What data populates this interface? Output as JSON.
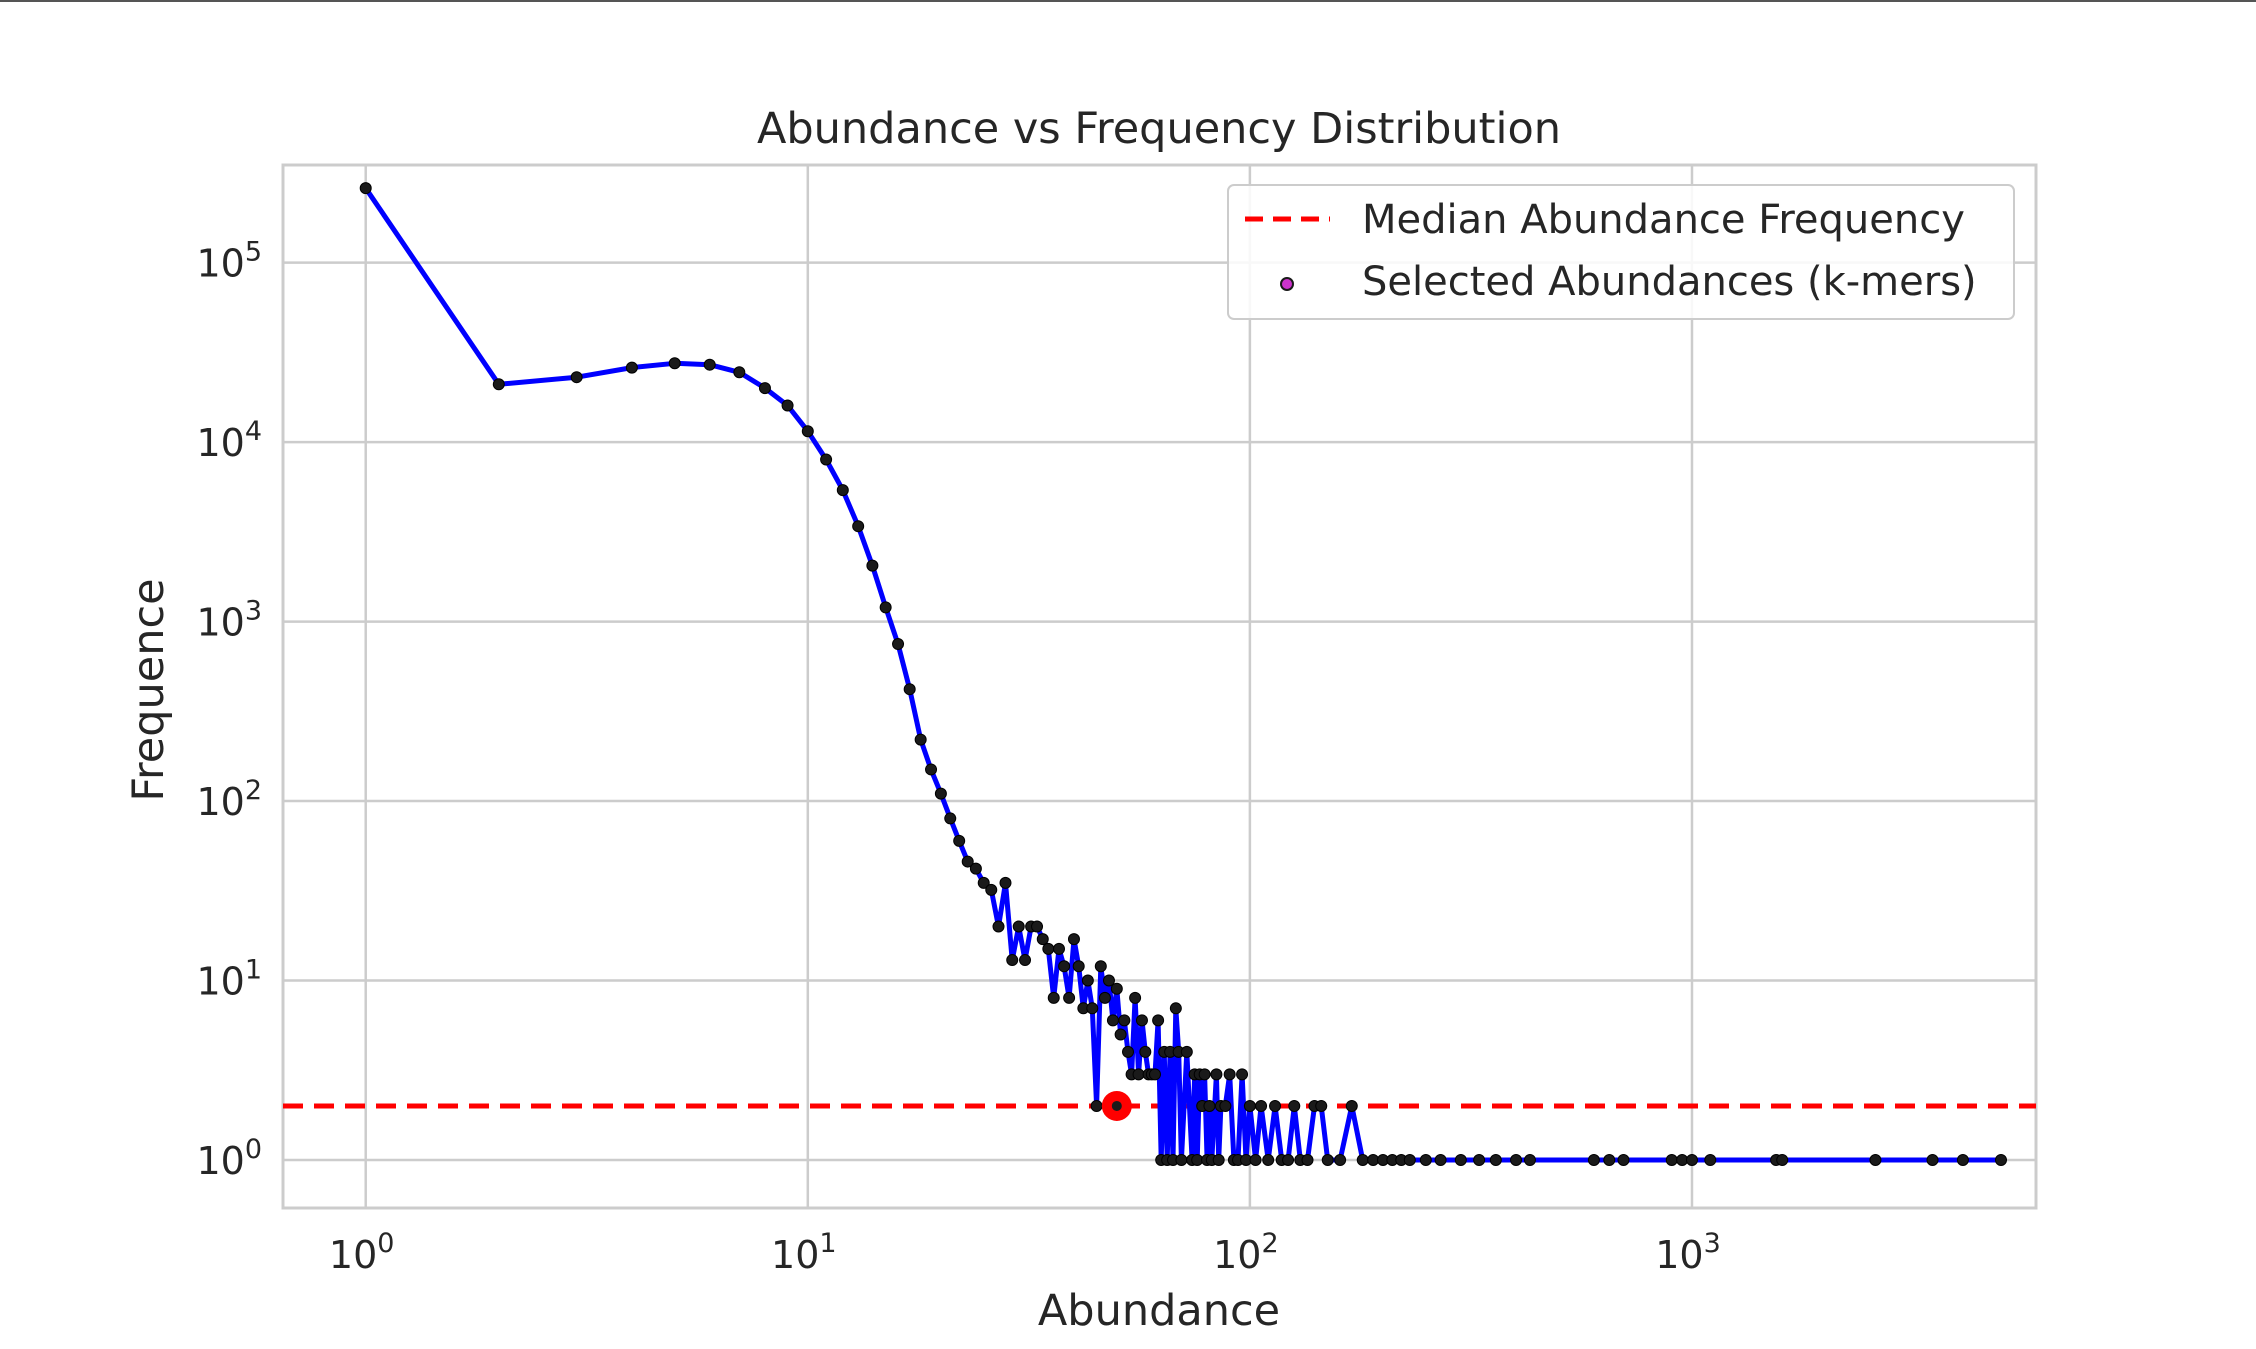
{
  "chart_data": {
    "type": "line",
    "title": "Abundance vs Frequency Distribution",
    "xlabel": "Abundance",
    "ylabel": "Frequence",
    "xscale": "log",
    "yscale": "log",
    "xlim": [
      0.65,
      6000
    ],
    "ylim": [
      0.54,
      350000
    ],
    "grid": true,
    "legend_position": "upper right",
    "x_ticks": [
      {
        "base": "10",
        "exp": "0",
        "value": 1
      },
      {
        "base": "10",
        "exp": "1",
        "value": 10
      },
      {
        "base": "10",
        "exp": "2",
        "value": 100
      },
      {
        "base": "10",
        "exp": "3",
        "value": 1000
      }
    ],
    "y_ticks": [
      {
        "base": "10",
        "exp": "0",
        "value": 1
      },
      {
        "base": "10",
        "exp": "1",
        "value": 10
      },
      {
        "base": "10",
        "exp": "2",
        "value": 100
      },
      {
        "base": "10",
        "exp": "3",
        "value": 1000
      },
      {
        "base": "10",
        "exp": "4",
        "value": 10000
      },
      {
        "base": "10",
        "exp": "5",
        "value": 100000
      }
    ],
    "line_color": "#0000ff",
    "marker_color": "#1a1a1a",
    "median_line": {
      "name": "Median Abundance Frequency",
      "y": 2,
      "color": "#ff0000"
    },
    "highlight_point": {
      "x": 50,
      "y": 2,
      "color": "#ff0000"
    },
    "legend": [
      {
        "label": "Median Abundance Frequency",
        "style": "dashed-line",
        "color": "#ff0000"
      },
      {
        "label": "Selected Abundances (k-mers)",
        "style": "point",
        "color": "#cc33cc"
      }
    ],
    "series": [
      {
        "x": [
          1,
          2,
          3,
          4,
          5,
          6,
          7,
          8,
          9,
          10,
          11,
          12,
          13,
          14,
          15,
          16,
          17,
          18,
          19,
          20,
          21,
          22,
          23,
          24,
          25,
          26,
          27,
          28,
          29,
          30,
          31,
          32,
          33,
          34,
          35,
          36,
          37,
          38,
          39,
          40,
          41,
          42,
          43,
          44,
          45,
          46,
          47,
          48,
          49,
          50,
          51,
          52,
          53,
          54,
          55,
          56,
          57,
          58,
          59,
          60,
          61,
          62,
          63,
          64,
          65,
          66,
          67,
          68,
          69,
          70,
          72,
          74,
          75,
          76,
          77,
          78,
          79,
          80,
          81,
          82,
          84,
          85,
          86,
          88,
          90,
          92,
          94,
          96,
          98,
          100,
          103,
          106,
          110,
          114,
          118,
          122,
          126,
          130,
          135,
          140,
          145,
          150,
          160,
          170,
          180,
          190,
          200,
          210,
          220,
          230,
          250,
          270,
          300,
          330,
          360,
          400,
          430,
          600,
          650,
          700,
          900,
          950,
          1000,
          1100,
          1550,
          1600,
          2600,
          3500,
          4100,
          5000
        ],
        "y": [
          260000,
          21000,
          23000,
          26000,
          27500,
          27000,
          24500,
          20000,
          16000,
          11500,
          8000,
          5400,
          3400,
          2050,
          1200,
          750,
          420,
          220,
          150,
          110,
          80,
          60,
          46,
          42,
          35,
          32,
          20,
          35,
          13,
          20,
          13,
          20,
          20,
          17,
          15,
          8,
          15,
          12,
          8,
          17,
          12,
          7,
          10,
          7,
          2,
          12,
          8,
          10,
          6,
          9,
          5,
          6,
          4,
          3,
          8,
          3,
          6,
          4,
          3,
          3,
          3,
          6,
          1,
          4,
          1,
          4,
          1,
          7,
          4,
          1,
          4,
          1,
          3,
          1,
          3,
          2,
          3,
          1,
          2,
          1,
          3,
          1,
          2,
          2,
          3,
          1,
          1,
          3,
          1,
          2,
          1,
          2,
          1,
          2,
          1,
          1,
          2,
          1,
          1,
          2,
          2,
          1,
          1,
          2,
          1,
          1,
          1,
          1,
          1,
          1,
          1,
          1,
          1,
          1,
          1,
          1,
          1,
          1,
          1,
          1,
          1,
          1,
          1,
          1,
          1,
          1,
          1,
          1,
          1,
          1
        ]
      }
    ]
  }
}
